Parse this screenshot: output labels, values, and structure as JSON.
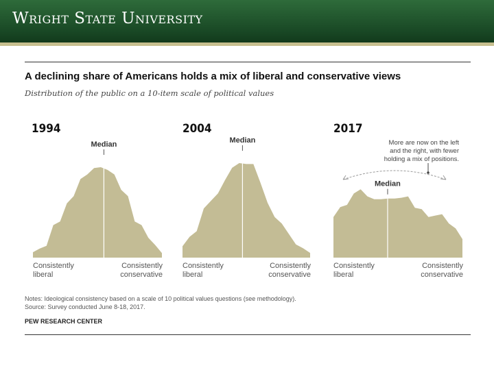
{
  "header": {
    "university": "Wright State University"
  },
  "title": "A declining share of Americans holds a mix of liberal and conservative views",
  "subtitle": "Distribution of the public on a 10-item scale of political values",
  "annotation": "More are now on the left\nand the right, with fewer\nholding a mix of positions.",
  "notes": {
    "line1": "Notes: Ideological consistency based on a scale of 10 political values questions (see methodology).",
    "line2": "Source: Survey conducted June 8-18, 2017."
  },
  "source_org": "PEW RESEARCH CENTER",
  "colors": {
    "fill": "#c3bc95",
    "banner": "#1f5630",
    "accent": "#c7bf8f"
  },
  "chart_data": [
    {
      "type": "area",
      "title": "1994",
      "median_label": "Median",
      "median_position": 0.55,
      "left_label": "Consistently\nliberal",
      "right_label": "Consistently\nconservative",
      "values": [
        0.06,
        0.1,
        0.13,
        0.36,
        0.4,
        0.6,
        0.68,
        0.87,
        0.92,
        0.99,
        1.0,
        0.97,
        0.92,
        0.75,
        0.68,
        0.4,
        0.36,
        0.22,
        0.14,
        0.05
      ]
    },
    {
      "type": "area",
      "title": "2004",
      "median_label": "Median",
      "median_position": 0.47,
      "left_label": "Consistently\nliberal",
      "right_label": "Consistently\nconservative",
      "values": [
        0.12,
        0.22,
        0.28,
        0.52,
        0.6,
        0.68,
        0.82,
        0.95,
        1.0,
        0.99,
        0.99,
        0.79,
        0.58,
        0.43,
        0.36,
        0.25,
        0.14,
        0.1,
        0.05
      ]
    },
    {
      "type": "area",
      "title": "2017",
      "median_label": "Median",
      "median_position": 0.42,
      "left_label": "Consistently\nliberal",
      "right_label": "Consistently\nconservative",
      "values": [
        0.57,
        0.71,
        0.74,
        0.9,
        0.96,
        0.86,
        0.82,
        0.82,
        0.83,
        0.83,
        0.84,
        0.86,
        0.7,
        0.68,
        0.57,
        0.59,
        0.61,
        0.48,
        0.41,
        0.26
      ]
    }
  ]
}
